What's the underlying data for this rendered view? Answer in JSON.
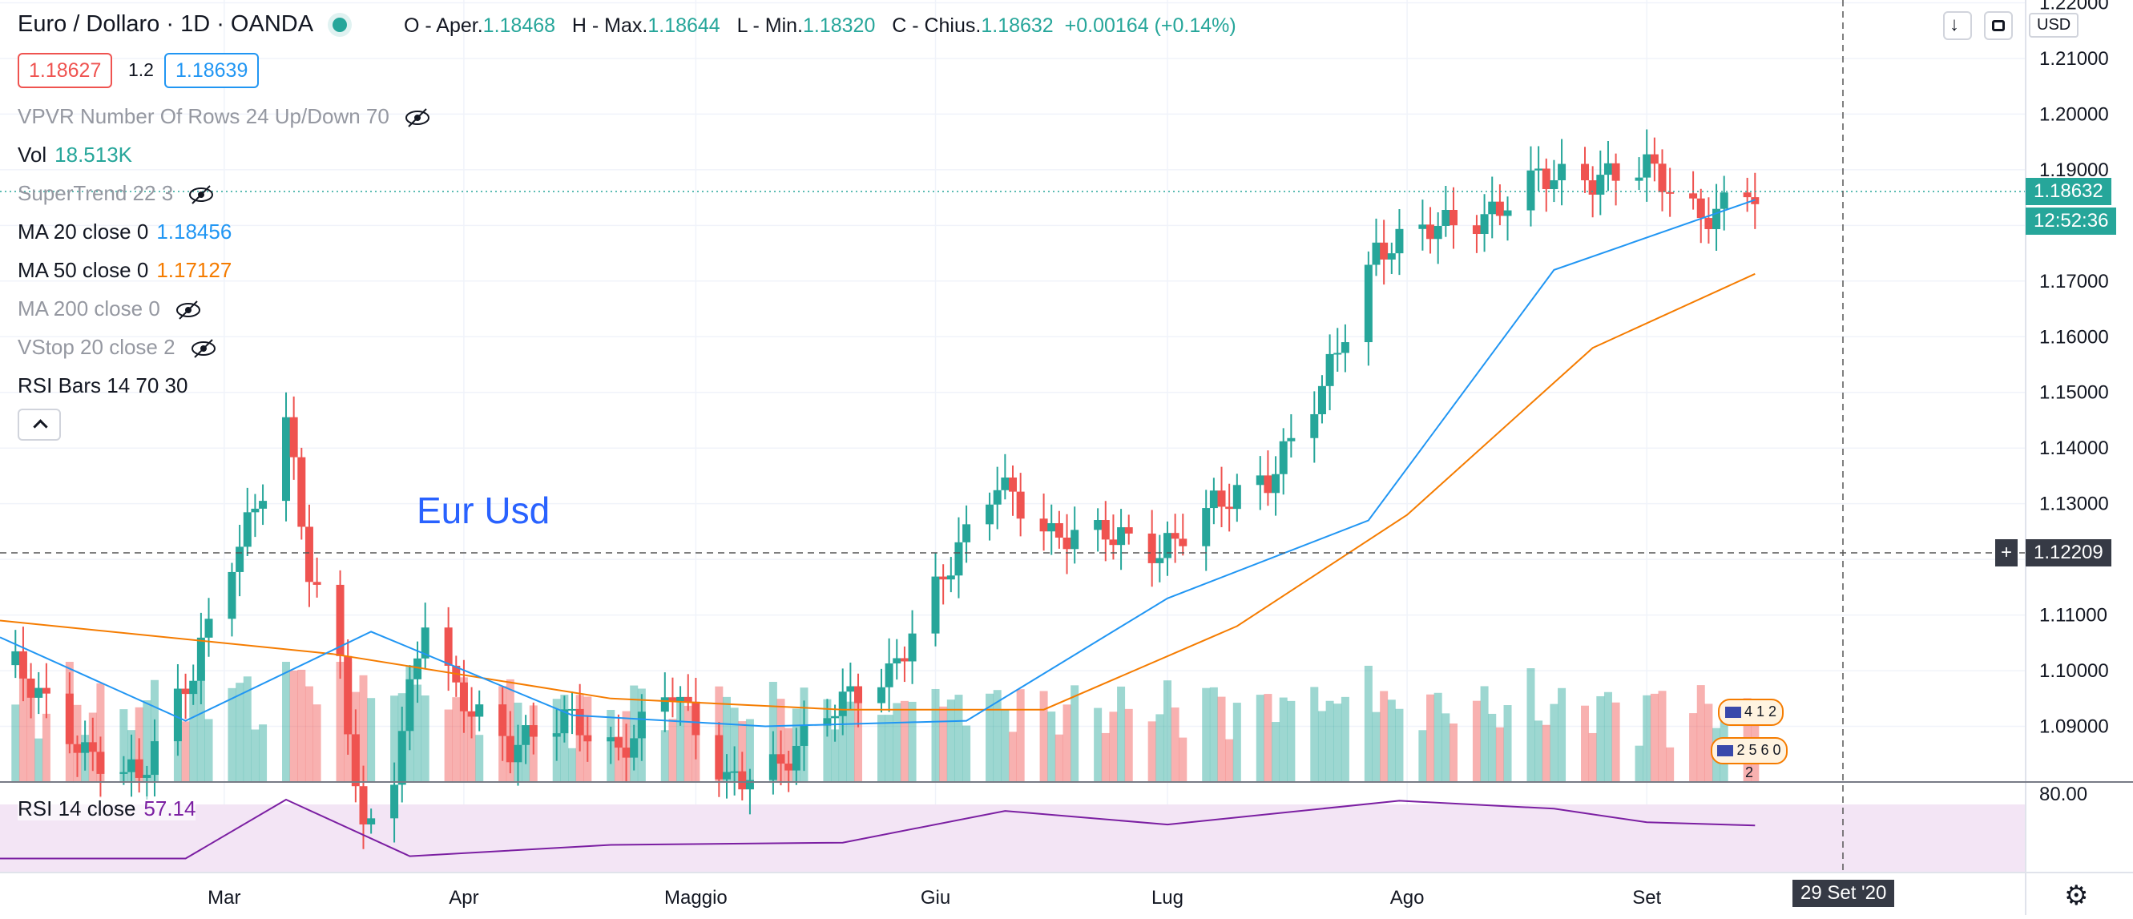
{
  "header": {
    "symbol": "Euro / Dollaro · 1D · OANDA",
    "ohlc": [
      {
        "k": "O - Aper.",
        "v": "1.18468"
      },
      {
        "k": "H - Max.",
        "v": "1.18644"
      },
      {
        "k": "L - Min.",
        "v": "1.18320"
      },
      {
        "k": "C - Chius.",
        "v": "1.18632"
      }
    ],
    "change": "+0.00164 (+0.14%)",
    "bid": "1.18627",
    "spread": "1.2",
    "ask": "1.18639"
  },
  "indicators": [
    {
      "label": "VPVR Number Of Rows 24 Up/Down 70",
      "value": "",
      "hidden": true
    },
    {
      "label": "Vol",
      "value": "18.513K",
      "hidden": false,
      "color": "#26a69a"
    },
    {
      "label": "SuperTrend 22 3",
      "value": "",
      "hidden": true
    },
    {
      "label": "MA 20 close 0",
      "value": "1.18456",
      "hidden": false,
      "color": "#2196f3"
    },
    {
      "label": "MA 50 close 0",
      "value": "1.17127",
      "hidden": false,
      "color": "#f57c00"
    },
    {
      "label": "MA 200 close 0",
      "value": "",
      "hidden": true
    },
    {
      "label": "VStop 20 close 2",
      "value": "",
      "hidden": true
    },
    {
      "label": "RSI Bars 14 70 30",
      "value": "",
      "hidden": false
    }
  ],
  "annotation": "Eur Usd",
  "currency": "USD",
  "rsi": {
    "label": "RSI 14 close",
    "value": "57.14",
    "level": "80.00"
  },
  "badges": {
    "last_price": "1.18632",
    "countdown": "12:52:36",
    "crosshair_price": "1.12209",
    "crosshair_date": "29 Set '20",
    "crosshair_plus": "+"
  },
  "events": [
    "4 1 2",
    "2 5 6 0 2"
  ],
  "colors": {
    "up": "#26a69a",
    "down": "#ef5350",
    "ma20": "#2196f3",
    "ma50": "#f57c00",
    "rsi": "#7b1fa2",
    "rsi_band": "#f3e5f5"
  },
  "chart_data": {
    "type": "candlestick",
    "title": "Euro / Dollaro · 1D · OANDA",
    "x_tick_labels": [
      "Mar",
      "Apr",
      "Maggio",
      "Giu",
      "Lug",
      "Ago",
      "Set"
    ],
    "y_tick_labels": [
      "1.09000",
      "1.10000",
      "1.11000",
      "1.12000",
      "1.13000",
      "1.14000",
      "1.15000",
      "1.16000",
      "1.17000",
      "1.18000",
      "1.19000",
      "1.20000",
      "1.21000",
      "1.22000"
    ],
    "ylim": [
      1.08,
      1.2205
    ],
    "x_range": [
      "2020-02-01",
      "2020-10-20"
    ],
    "close": {
      "dates": [
        "2020-02-03",
        "2020-02-12",
        "2020-02-19",
        "2020-02-26",
        "2020-03-02",
        "2020-03-05",
        "2020-03-09",
        "2020-03-12",
        "2020-03-16",
        "2020-03-19",
        "2020-03-23",
        "2020-03-27",
        "2020-03-31",
        "2020-04-07",
        "2020-04-14",
        "2020-04-21",
        "2020-04-28",
        "2020-05-05",
        "2020-05-12",
        "2020-05-19",
        "2020-05-26",
        "2020-06-02",
        "2020-06-09",
        "2020-06-16",
        "2020-06-23",
        "2020-06-30",
        "2020-07-07",
        "2020-07-14",
        "2020-07-21",
        "2020-07-28",
        "2020-08-04",
        "2020-08-11",
        "2020-08-18",
        "2020-08-25",
        "2020-09-01",
        "2020-09-08",
        "2020-09-14"
      ],
      "values": [
        1.101,
        1.085,
        1.081,
        1.1,
        1.12,
        1.129,
        1.145,
        1.118,
        1.101,
        1.07,
        1.082,
        1.11,
        1.096,
        1.086,
        1.092,
        1.085,
        1.097,
        1.08,
        1.083,
        1.094,
        1.099,
        1.117,
        1.134,
        1.124,
        1.125,
        1.121,
        1.13,
        1.134,
        1.151,
        1.175,
        1.18,
        1.181,
        1.189,
        1.188,
        1.191,
        1.181,
        1.186
      ]
    },
    "ma20": {
      "dates": [
        "2020-02-01",
        "2020-02-25",
        "2020-03-20",
        "2020-04-15",
        "2020-05-10",
        "2020-06-05",
        "2020-07-01",
        "2020-07-27",
        "2020-08-20",
        "2020-09-15"
      ],
      "values": [
        1.106,
        1.091,
        1.107,
        1.092,
        1.09,
        1.091,
        1.113,
        1.127,
        1.172,
        1.1846
      ]
    },
    "ma50": {
      "dates": [
        "2020-02-01",
        "2020-03-15",
        "2020-04-20",
        "2020-05-20",
        "2020-06-15",
        "2020-07-10",
        "2020-08-01",
        "2020-08-25",
        "2020-09-15"
      ],
      "values": [
        1.109,
        1.103,
        1.095,
        1.093,
        1.093,
        1.108,
        1.128,
        1.158,
        1.1713
      ]
    },
    "rsi": {
      "dates": [
        "2020-02-01",
        "2020-02-25",
        "2020-03-09",
        "2020-03-25",
        "2020-04-20",
        "2020-05-20",
        "2020-06-10",
        "2020-07-01",
        "2020-07-31",
        "2020-08-20",
        "2020-09-01",
        "2020-09-15"
      ],
      "values": [
        28,
        28,
        80,
        30,
        40,
        42,
        70,
        58,
        79,
        72,
        60,
        57.14
      ]
    },
    "volume_axis": "bottom-overlay",
    "grid": true
  }
}
